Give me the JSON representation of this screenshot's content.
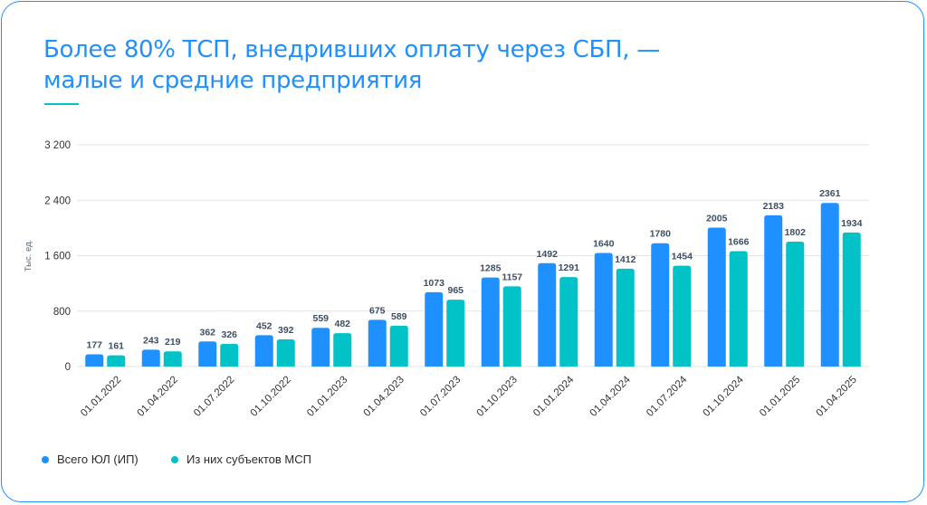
{
  "title_lines": [
    "Более 80% ТСП, внедривших оплату через СБП, —",
    "малые и средние предприятия"
  ],
  "colors": {
    "accent": "#1e90ff",
    "series1": "#1e90ff",
    "series2": "#00c2c7",
    "grid": "#e3e3e3"
  },
  "chart_data": {
    "type": "bar",
    "title": "Более 80% ТСП, внедривших оплату через СБП, — малые и средние предприятия",
    "ylabel": "Тыс. ед.",
    "xlabel": "",
    "ylim": [
      0,
      3200
    ],
    "yticks": [
      0,
      800,
      1600,
      2400,
      3200
    ],
    "ytick_labels": [
      "0",
      "800",
      "1 600",
      "2 400",
      "3 200"
    ],
    "grid": true,
    "legend_position": "bottom-left",
    "categories": [
      "01.01.2022",
      "01.04.2022",
      "01.07.2022",
      "01.10.2022",
      "01.01.2023",
      "01.04.2023",
      "01.07.2023",
      "01.10.2023",
      "01.01.2024",
      "01.04.2024",
      "01.07.2024",
      "01.10.2024",
      "01.01.2025",
      "01.04.2025"
    ],
    "series": [
      {
        "name": "Всего ЮЛ (ИП)",
        "color": "#1e90ff",
        "values": [
          177,
          243,
          362,
          452,
          559,
          675,
          1073,
          1285,
          1492,
          1640,
          1780,
          2005,
          2183,
          2361
        ]
      },
      {
        "name": "Из них субъектов МСП",
        "color": "#00c2c7",
        "values": [
          161,
          219,
          326,
          392,
          482,
          589,
          965,
          1157,
          1291,
          1412,
          1454,
          1666,
          1802,
          1934
        ]
      }
    ]
  }
}
